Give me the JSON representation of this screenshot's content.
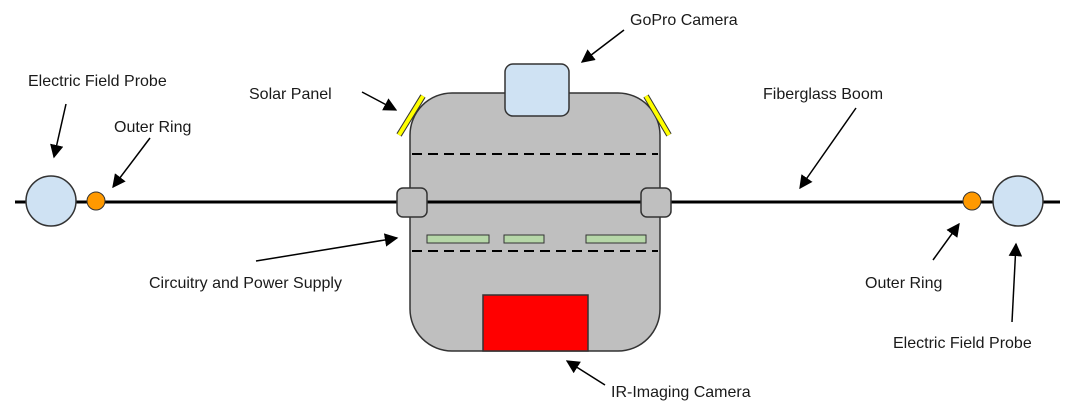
{
  "labels": {
    "gopro_camera": "GoPro Camera",
    "solar_panel": "Solar Panel",
    "fiberglass_boom": "Fiberglass Boom",
    "electric_field_probe_left": "Electric Field Probe",
    "outer_ring_left": "Outer Ring",
    "circuitry_power_supply": "Circuitry and Power Supply",
    "outer_ring_right": "Outer Ring",
    "electric_field_probe_right": "Electric Field Probe",
    "ir_imaging_camera": "IR-Imaging Camera"
  },
  "colors": {
    "body_fill": "#bfbfbf",
    "probe_fill": "#cfe2f3",
    "camera_fill": "#cfe2f3",
    "outer_ring_fill": "#ff9900",
    "solar_panel_fill": "#ffff00",
    "circuit_board_fill": "#b6d7a8",
    "ir_camera_fill": "#ff0000",
    "outline": "#333333"
  }
}
